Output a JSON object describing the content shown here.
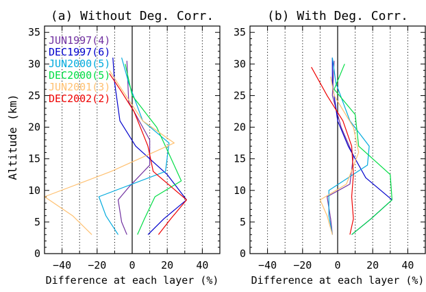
{
  "figure": {
    "ylabel": "Altitude (km)"
  },
  "chart_data": [
    {
      "type": "line",
      "title": "(a) Without Deg. Corr.",
      "xlabel": "Difference at each layer (%)",
      "ylabel": "Altitude (km)",
      "xlim": [
        -50,
        50
      ],
      "ylim": [
        0,
        36
      ],
      "xticks": [
        -40,
        -20,
        0,
        20,
        40
      ],
      "yticks": [
        0,
        5,
        10,
        15,
        20,
        25,
        30,
        35
      ],
      "grid": "vertical dotted every 10%",
      "zero_line": true,
      "legend": "top-left",
      "series": [
        {
          "name": "JUN1997(4)",
          "color": "#7030a0",
          "points": [
            [
              -3,
              30.5
            ],
            [
              -2,
              24
            ],
            [
              10,
              18
            ],
            [
              10,
              14
            ],
            [
              -2,
              10.5
            ],
            [
              -8,
              8.5
            ],
            [
              -6,
              5
            ],
            [
              -3,
              3
            ]
          ]
        },
        {
          "name": "DEC1997(6)",
          "color": "#0000cc",
          "points": [
            [
              -11,
              31
            ],
            [
              -10,
              27
            ],
            [
              -7,
              21
            ],
            [
              2,
              17
            ],
            [
              20,
              12.5
            ],
            [
              31,
              8.5
            ],
            [
              18,
              5.5
            ],
            [
              9,
              3
            ]
          ]
        },
        {
          "name": "JUN2000(5)",
          "color": "#00aadd",
          "points": [
            [
              -6,
              31
            ],
            [
              -2,
              27
            ],
            [
              6,
              21
            ],
            [
              21,
              17.5
            ],
            [
              19,
              13
            ],
            [
              -19,
              9
            ],
            [
              -15,
              6
            ],
            [
              -8,
              3
            ]
          ]
        },
        {
          "name": "DEC2000(5)",
          "color": "#00dd44",
          "points": [
            [
              -4,
              30
            ],
            [
              0,
              25
            ],
            [
              14,
              20
            ],
            [
              19,
              17
            ],
            [
              28,
              11.5
            ],
            [
              13,
              9
            ],
            [
              7,
              5.5
            ],
            [
              3,
              3
            ]
          ]
        },
        {
          "name": "JUN2001(3)",
          "color": "#ffc070",
          "points": [
            [
              -13,
              29
            ],
            [
              -6,
              26
            ],
            [
              6,
              21
            ],
            [
              24,
              17.5
            ],
            [
              -12,
              13
            ],
            [
              -50,
              9
            ],
            [
              -34,
              6
            ],
            [
              -23,
              3
            ]
          ]
        },
        {
          "name": "DEC2002(2)",
          "color": "#ee0000",
          "points": [
            [
              -13,
              28.5
            ],
            [
              -7,
              26
            ],
            [
              1,
              22.5
            ],
            [
              9,
              17
            ],
            [
              12,
              13
            ],
            [
              31,
              8.5
            ],
            [
              22,
              5.5
            ],
            [
              15,
              3
            ]
          ]
        }
      ]
    },
    {
      "type": "line",
      "title": "(b) With Deg. Corr.",
      "xlabel": "Difference at each layer (%)",
      "xlim": [
        -50,
        50
      ],
      "ylim": [
        0,
        36
      ],
      "xticks": [
        -40,
        -20,
        0,
        20,
        40
      ],
      "yticks": [
        0,
        5,
        10,
        15,
        20,
        25,
        30,
        35
      ],
      "grid": "vertical dotted every 10%",
      "zero_line": true,
      "series": [
        {
          "name": "JUN1997(4)",
          "color": "#7030a0",
          "points": [
            [
              -2,
              30.5
            ],
            [
              -3,
              25
            ],
            [
              2,
              20
            ],
            [
              9,
              15.5
            ],
            [
              7,
              11
            ],
            [
              -6,
              9
            ],
            [
              -4,
              5.5
            ],
            [
              -3,
              3
            ]
          ]
        },
        {
          "name": "DEC1997(6)",
          "color": "#0000cc",
          "points": [
            [
              -3,
              31
            ],
            [
              -3,
              27
            ],
            [
              0,
              21
            ],
            [
              6,
              17
            ],
            [
              16,
              12
            ],
            [
              31,
              8.5
            ],
            [
              19,
              5.5
            ],
            [
              8,
              3
            ]
          ]
        },
        {
          "name": "JUN2000(5)",
          "color": "#00aadd",
          "points": [
            [
              -3,
              31
            ],
            [
              -1,
              27
            ],
            [
              7,
              21
            ],
            [
              18,
              17
            ],
            [
              17,
              14
            ],
            [
              -5,
              10
            ],
            [
              -5,
              6
            ],
            [
              -3,
              3
            ]
          ]
        },
        {
          "name": "DEC2000(5)",
          "color": "#00dd44",
          "points": [
            [
              4,
              30
            ],
            [
              -2,
              26
            ],
            [
              10,
              22
            ],
            [
              12,
              17
            ],
            [
              30,
              12.5
            ],
            [
              31,
              8.5
            ],
            [
              19,
              5.5
            ],
            [
              8,
              3
            ]
          ]
        },
        {
          "name": "JUN2001(3)",
          "color": "#ffc070",
          "points": [
            [
              -4,
              28
            ],
            [
              -2,
              25
            ],
            [
              9,
              20
            ],
            [
              12,
              16
            ],
            [
              5,
              11
            ],
            [
              -10,
              8.5
            ],
            [
              -6,
              6
            ],
            [
              -3,
              3
            ]
          ]
        },
        {
          "name": "DEC2002(2)",
          "color": "#ee0000",
          "points": [
            [
              -15,
              29.5
            ],
            [
              -6,
              25
            ],
            [
              3,
              21
            ],
            [
              8,
              17
            ],
            [
              9,
              12.5
            ],
            [
              8,
              9
            ],
            [
              9,
              5.5
            ],
            [
              7,
              3
            ]
          ]
        }
      ]
    }
  ]
}
